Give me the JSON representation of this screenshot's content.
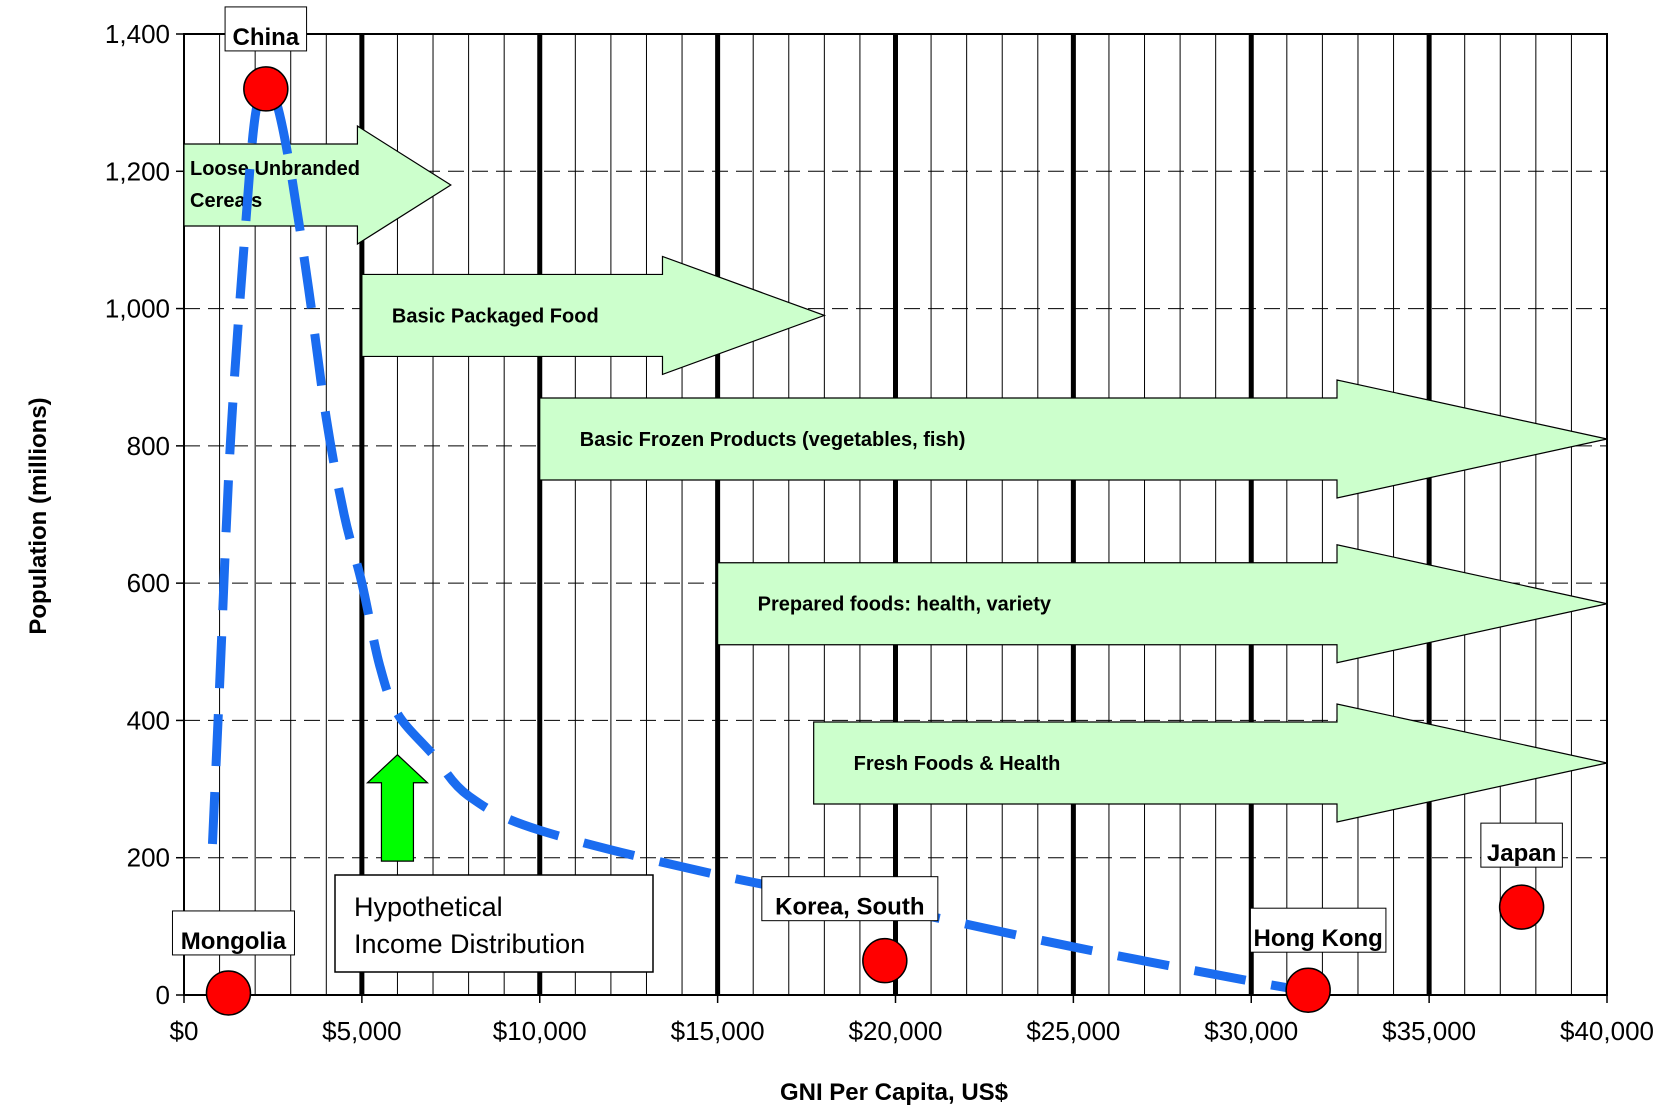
{
  "chart_data": {
    "type": "scatter",
    "xlabel": "GNI Per Capita, US$",
    "ylabel": "Population (millions)",
    "xlim": [
      0,
      40000
    ],
    "ylim": [
      0,
      1400
    ],
    "x_ticks": [
      0,
      5000,
      10000,
      15000,
      20000,
      25000,
      30000,
      35000,
      40000
    ],
    "x_tick_labels": [
      "$0",
      "$5,000",
      "$10,000",
      "$15,000",
      "$20,000",
      "$25,000",
      "$30,000",
      "$35,000",
      "$40,000"
    ],
    "y_ticks": [
      0,
      200,
      400,
      600,
      800,
      1000,
      1200,
      1400
    ],
    "y_tick_labels": [
      "0",
      "200",
      "400",
      "600",
      "800",
      "1,000",
      "1,200",
      "1,400"
    ],
    "grid": {
      "minor_vertical_step": 1000,
      "major_vertical_step": 5000,
      "horizontal": "dashed"
    },
    "points": [
      {
        "label": "China",
        "x": 2300,
        "y": 1320
      },
      {
        "label": "Mongolia",
        "x": 1250,
        "y": 3
      },
      {
        "label": "Korea, South",
        "x": 19700,
        "y": 50
      },
      {
        "label": "Hong Kong",
        "x": 31600,
        "y": 7
      },
      {
        "label": "Japan",
        "x": 37600,
        "y": 128
      }
    ],
    "point_color": "#ff0000",
    "distribution": {
      "label": "Hypothetical Income Distribution",
      "color": "#1a6cf0",
      "x": [
        800,
        1000,
        1300,
        1700,
        2000,
        2300,
        2600,
        3000,
        3500,
        4000,
        4500,
        5000,
        5500,
        6000,
        7000,
        8000,
        10000,
        15000,
        20000,
        25000,
        30000,
        31700
      ],
      "y": [
        220,
        450,
        800,
        1100,
        1280,
        1320,
        1300,
        1200,
        1030,
        840,
        700,
        600,
        480,
        410,
        350,
        290,
        240,
        175,
        125,
        70,
        20,
        5
      ]
    },
    "product_arrows": [
      {
        "label_lines": [
          "Loose Unbranded",
          "Cereals"
        ],
        "x_start": 0,
        "x_end": 7500,
        "y_center": 1180
      },
      {
        "label_lines": [
          "Basic Packaged Food"
        ],
        "x_start": 5000,
        "x_end": 18000,
        "y_center": 990
      },
      {
        "label_lines": [
          "Basic Frozen Products (vegetables, fish)"
        ],
        "x_start": 10000,
        "x_end": 40000,
        "y_center": 810
      },
      {
        "label_lines": [
          "Prepared foods: health, variety"
        ],
        "x_start": 15000,
        "x_end": 40000,
        "y_center": 570
      },
      {
        "label_lines": [
          "Fresh Foods & Health"
        ],
        "x_start": 17700,
        "x_end": 40000,
        "y_center": 338
      }
    ],
    "arrow_color": "#ccffcc",
    "up_arrow": {
      "x": 6000,
      "y_base": 195,
      "y_top": 350,
      "color": "#00ff00"
    }
  }
}
